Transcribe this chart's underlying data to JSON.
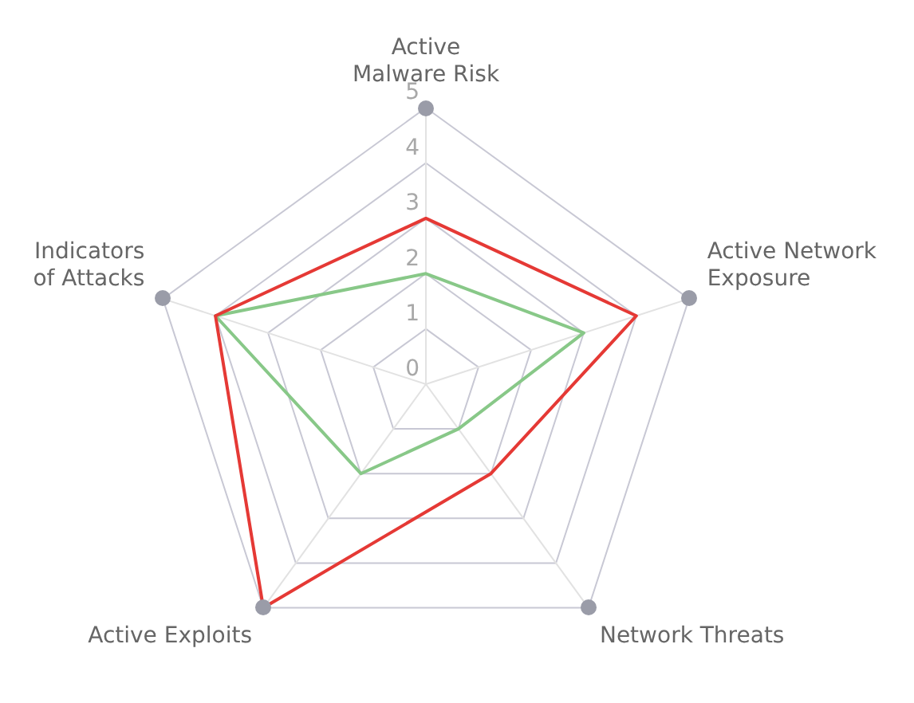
{
  "chart_data": {
    "type": "radar",
    "categories": [
      "Active Malware Risk",
      "Active Network Exposure",
      "Network Threats",
      "Active Exploits",
      "Indicators of Attacks"
    ],
    "ylim": [
      0,
      5
    ],
    "yticks": [
      0,
      1,
      2,
      3,
      4,
      5
    ],
    "grid": true,
    "legend": false,
    "series": [
      {
        "color": "#e53935",
        "values": [
          3,
          4,
          2,
          5,
          4
        ]
      },
      {
        "color": "#88c888",
        "values": [
          2,
          3,
          1,
          2,
          4
        ]
      }
    ]
  }
}
